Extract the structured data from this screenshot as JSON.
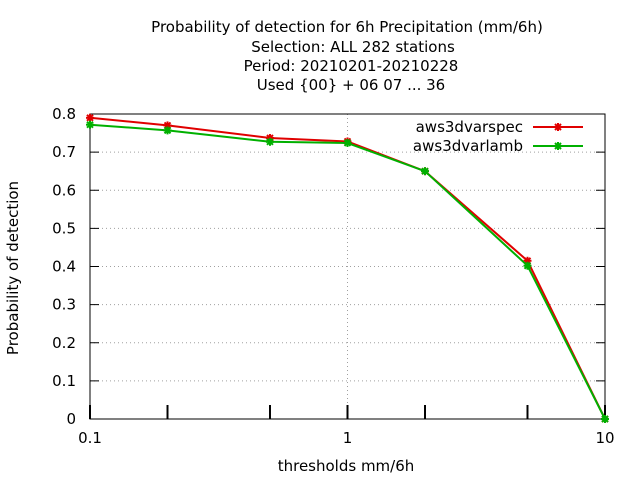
{
  "chart_data": {
    "type": "line",
    "title_lines": [
      "Probability of detection  for 6h Precipitation (mm/6h)",
      "Selection: ALL    282 stations",
      "Period: 20210201-20210228",
      "Used {00} + 06 07 ... 36"
    ],
    "xlabel": "thresholds mm/6h",
    "ylabel": "Probability of detection",
    "x_scale": "log",
    "xlim": [
      0.1,
      10
    ],
    "ylim": [
      0,
      0.8
    ],
    "x_ticks": [
      0.1,
      1,
      10
    ],
    "x_tick_labels": [
      "0.1",
      "1",
      "10"
    ],
    "x_minor_ticks": [
      0.2,
      0.5,
      2,
      5
    ],
    "y_ticks": [
      0,
      0.1,
      0.2,
      0.3,
      0.4,
      0.5,
      0.6,
      0.7,
      0.8
    ],
    "y_tick_labels": [
      "0",
      "0.1",
      "0.2",
      "0.3",
      "0.4",
      "0.5",
      "0.6",
      "0.7",
      "0.8"
    ],
    "grid": true,
    "legend_position": "top-right",
    "x": [
      0.1,
      0.2,
      0.5,
      1,
      2,
      5,
      10
    ],
    "series": [
      {
        "name": "aws3dvarspec",
        "color": "#e00000",
        "values": [
          0.79,
          0.77,
          0.737,
          0.728,
          0.65,
          0.415,
          0.0
        ]
      },
      {
        "name": "aws3dvarlamb",
        "color": "#00b000",
        "values": [
          0.772,
          0.757,
          0.727,
          0.724,
          0.65,
          0.402,
          0.0
        ]
      }
    ]
  }
}
